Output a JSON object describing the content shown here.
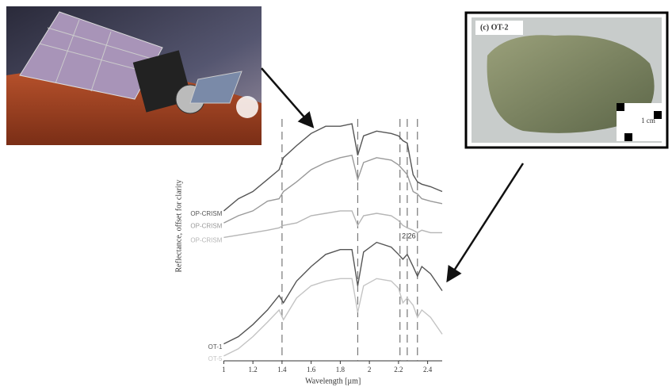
{
  "chart_data": {
    "type": "line",
    "ylabel": "Reflectance, offset for clarity",
    "xlabel": "Wavelength [µm]",
    "annotation": "2.26",
    "panel_label": "(c) OT-2",
    "scale_label": "1 cm",
    "xlim": [
      1,
      2.5
    ],
    "xticks": [
      1,
      1.2,
      1.4,
      1.6,
      1.8,
      2,
      2.2,
      2.4
    ],
    "ylim": [
      0,
      1
    ],
    "vlines": [
      1.4,
      1.92,
      2.21,
      2.26,
      2.33
    ],
    "x": [
      1.0,
      1.1,
      1.2,
      1.3,
      1.38,
      1.41,
      1.5,
      1.6,
      1.7,
      1.8,
      1.88,
      1.92,
      1.96,
      2.05,
      2.15,
      2.2,
      2.23,
      2.26,
      2.3,
      2.33,
      2.36,
      2.42,
      2.5
    ],
    "series": [
      {
        "name": "OP-CRISM",
        "color": "#555555",
        "values": [
          0.62,
          0.67,
          0.7,
          0.75,
          0.79,
          0.84,
          0.89,
          0.94,
          0.97,
          0.97,
          0.98,
          0.85,
          0.93,
          0.95,
          0.94,
          0.93,
          0.91,
          0.9,
          0.77,
          0.74,
          0.73,
          0.72,
          0.7
        ]
      },
      {
        "name": "OP-CRISM",
        "color": "#999999",
        "values": [
          0.57,
          0.6,
          0.62,
          0.66,
          0.67,
          0.7,
          0.74,
          0.79,
          0.82,
          0.84,
          0.85,
          0.75,
          0.82,
          0.84,
          0.83,
          0.81,
          0.79,
          0.77,
          0.7,
          0.69,
          0.67,
          0.66,
          0.65
        ]
      },
      {
        "name": "OP-CRISM",
        "color": "#b5b5b5",
        "values": [
          0.51,
          0.52,
          0.53,
          0.54,
          0.55,
          0.56,
          0.57,
          0.6,
          0.61,
          0.62,
          0.62,
          0.56,
          0.6,
          0.61,
          0.6,
          0.58,
          0.56,
          0.55,
          0.54,
          0.53,
          0.54,
          0.53,
          0.53
        ]
      },
      {
        "name": "OT-1",
        "color": "#555555",
        "values": [
          0.07,
          0.1,
          0.15,
          0.21,
          0.27,
          0.24,
          0.33,
          0.39,
          0.44,
          0.46,
          0.46,
          0.31,
          0.45,
          0.49,
          0.47,
          0.44,
          0.42,
          0.44,
          0.39,
          0.35,
          0.39,
          0.36,
          0.29
        ]
      },
      {
        "name": "OT-5",
        "color": "#c4c4c4",
        "values": [
          0.02,
          0.05,
          0.1,
          0.16,
          0.21,
          0.17,
          0.26,
          0.31,
          0.33,
          0.34,
          0.34,
          0.2,
          0.31,
          0.34,
          0.33,
          0.3,
          0.24,
          0.26,
          0.23,
          0.18,
          0.21,
          0.18,
          0.11
        ]
      }
    ]
  }
}
